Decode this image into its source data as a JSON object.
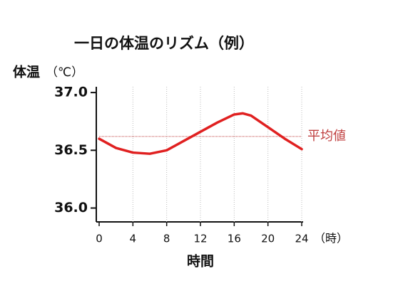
{
  "chart_data": {
    "type": "line",
    "title": "一日の体温のリズム（例）",
    "y_label": "体温",
    "y_unit": "（℃）",
    "x_label": "時間",
    "x_unit": "（時）",
    "x": [
      0,
      2,
      4,
      6,
      8,
      10,
      12,
      14,
      16,
      17,
      18,
      20,
      22,
      24
    ],
    "series": [
      {
        "color": "#e02020",
        "values": [
          36.6,
          36.52,
          36.48,
          36.47,
          36.5,
          36.58,
          36.66,
          36.74,
          36.81,
          36.82,
          36.8,
          36.7,
          36.6,
          36.51
        ]
      }
    ],
    "mean_line": {
      "value": 36.62,
      "label": "平均値",
      "color": "#c04040"
    },
    "xlim": [
      0,
      24
    ],
    "xticks": [
      0,
      4,
      8,
      12,
      16,
      20,
      24
    ],
    "ylim": [
      35.88,
      37.05
    ],
    "yticks": [
      {
        "value": 36.0,
        "label": "36.0"
      },
      {
        "value": 36.5,
        "label": "36.5"
      },
      {
        "value": 37.0,
        "label": "37.0"
      }
    ],
    "grid": true
  }
}
